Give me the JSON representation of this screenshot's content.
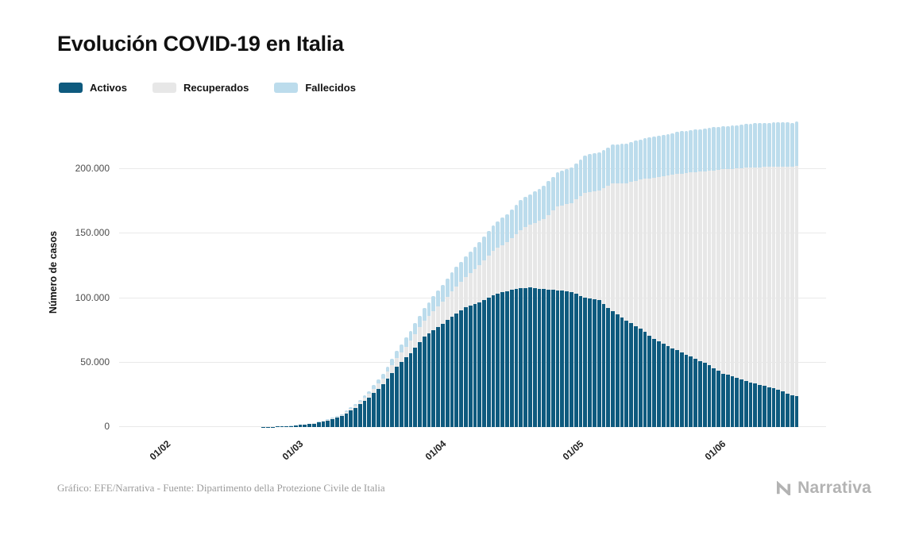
{
  "page": {
    "title": "Evolución COVID-19 en Italia",
    "footer_credit": "Gráfico: EFE/Narrativa - Fuente: Dipartimento della Protezione Civile de Italia",
    "brand": "Narrativa"
  },
  "legend": {
    "items": [
      {
        "label": "Activos",
        "key": "activos"
      },
      {
        "label": "Recuperados",
        "key": "recuperados"
      },
      {
        "label": "Fallecidos",
        "key": "fallecidos"
      }
    ]
  },
  "chart_data": {
    "type": "bar",
    "stacked": true,
    "title": "Evolución COVID-19 en Italia",
    "xlabel": "",
    "ylabel": "Número de casos",
    "ylim": [
      0,
      240000
    ],
    "grid": true,
    "legend_position": "top-left",
    "series": [
      "Activos",
      "Recuperados",
      "Fallecidos"
    ],
    "colors": {
      "activos": "#0e5a7e",
      "recuperados": "#e7e7e7",
      "fallecidos": "#bcdcec"
    },
    "yticks": [
      {
        "value": 0,
        "label": "0"
      },
      {
        "value": 50000,
        "label": "50.000"
      },
      {
        "value": 100000,
        "label": "100.000"
      },
      {
        "value": 150000,
        "label": "150.000"
      },
      {
        "value": 200000,
        "label": "200.000"
      }
    ],
    "xticks": [
      {
        "day": 10,
        "label": "01/02"
      },
      {
        "day": 39,
        "label": "01/03"
      },
      {
        "day": 70,
        "label": "01/04"
      },
      {
        "day": 100,
        "label": "01/05"
      },
      {
        "day": 131,
        "label": "01/06"
      }
    ],
    "axis_days": 154,
    "bar_days": 148,
    "anchors": [
      {
        "day": 0,
        "date": "22/01",
        "activos": 0,
        "recuperados": 0,
        "fallecidos": 0
      },
      {
        "day": 9,
        "date": "31/01",
        "activos": 2,
        "recuperados": 0,
        "fallecidos": 0
      },
      {
        "day": 24,
        "date": "15/02",
        "activos": 3,
        "recuperados": 0,
        "fallecidos": 0
      },
      {
        "day": 30,
        "date": "21/02",
        "activos": 17,
        "recuperados": 1,
        "fallecidos": 1
      },
      {
        "day": 33,
        "date": "24/02",
        "activos": 221,
        "recuperados": 1,
        "fallecidos": 7
      },
      {
        "day": 36,
        "date": "27/02",
        "activos": 528,
        "recuperados": 45,
        "fallecidos": 17
      },
      {
        "day": 39,
        "date": "01/03",
        "activos": 1577,
        "recuperados": 83,
        "fallecidos": 34
      },
      {
        "day": 42,
        "date": "04/03",
        "activos": 2706,
        "recuperados": 276,
        "fallecidos": 107
      },
      {
        "day": 45,
        "date": "07/03",
        "activos": 5061,
        "recuperados": 589,
        "fallecidos": 233
      },
      {
        "day": 48,
        "date": "10/03",
        "activos": 8514,
        "recuperados": 1004,
        "fallecidos": 631
      },
      {
        "day": 51,
        "date": "13/03",
        "activos": 14955,
        "recuperados": 1439,
        "fallecidos": 1266
      },
      {
        "day": 54,
        "date": "16/03",
        "activos": 23073,
        "recuperados": 2749,
        "fallecidos": 2158
      },
      {
        "day": 57,
        "date": "19/03",
        "activos": 33190,
        "recuperados": 4440,
        "fallecidos": 3405
      },
      {
        "day": 60,
        "date": "22/03",
        "activos": 46638,
        "recuperados": 7024,
        "fallecidos": 5476
      },
      {
        "day": 63,
        "date": "25/03",
        "activos": 57521,
        "recuperados": 9362,
        "fallecidos": 7503
      },
      {
        "day": 66,
        "date": "28/03",
        "activos": 70065,
        "recuperados": 12384,
        "fallecidos": 10023
      },
      {
        "day": 69,
        "date": "31/03",
        "activos": 77635,
        "recuperados": 15729,
        "fallecidos": 12428
      },
      {
        "day": 72,
        "date": "03/04",
        "activos": 85388,
        "recuperados": 19758,
        "fallecidos": 14681
      },
      {
        "day": 75,
        "date": "06/04",
        "activos": 93187,
        "recuperados": 22837,
        "fallecidos": 16523
      },
      {
        "day": 78,
        "date": "09/04",
        "activos": 96877,
        "recuperados": 28470,
        "fallecidos": 18279
      },
      {
        "day": 81,
        "date": "12/04",
        "activos": 102253,
        "recuperados": 34211,
        "fallecidos": 19899
      },
      {
        "day": 84,
        "date": "15/04",
        "activos": 105418,
        "recuperados": 38092,
        "fallecidos": 21645
      },
      {
        "day": 87,
        "date": "18/04",
        "activos": 107771,
        "recuperados": 44927,
        "fallecidos": 23227
      },
      {
        "day": 89,
        "date": "20/04",
        "activos": 108237,
        "recuperados": 48705,
        "fallecidos": 23660
      },
      {
        "day": 92,
        "date": "23/04",
        "activos": 106848,
        "recuperados": 54543,
        "fallecidos": 25549
      },
      {
        "day": 95,
        "date": "26/04",
        "activos": 106103,
        "recuperados": 64928,
        "fallecidos": 26644
      },
      {
        "day": 98,
        "date": "29/04",
        "activos": 104657,
        "recuperados": 68941,
        "fallecidos": 27682
      },
      {
        "day": 101,
        "date": "02/05",
        "activos": 100179,
        "recuperados": 81654,
        "fallecidos": 28884
      },
      {
        "day": 104,
        "date": "05/05",
        "activos": 98467,
        "recuperados": 85231,
        "fallecidos": 29315
      },
      {
        "day": 107,
        "date": "08/05",
        "activos": 89624,
        "recuperados": 99023,
        "fallecidos": 30201
      },
      {
        "day": 110,
        "date": "11/05",
        "activos": 82488,
        "recuperados": 106587,
        "fallecidos": 30739
      },
      {
        "day": 113,
        "date": "14/05",
        "activos": 76440,
        "recuperados": 115288,
        "fallecidos": 31368
      },
      {
        "day": 116,
        "date": "17/05",
        "activos": 68351,
        "recuperados": 125176,
        "fallecidos": 31908
      },
      {
        "day": 119,
        "date": "20/05",
        "activos": 62752,
        "recuperados": 132282,
        "fallecidos": 32330
      },
      {
        "day": 122,
        "date": "23/05",
        "activos": 57752,
        "recuperados": 138840,
        "fallecidos": 32735
      },
      {
        "day": 125,
        "date": "26/05",
        "activos": 52942,
        "recuperados": 144658,
        "fallecidos": 33048
      },
      {
        "day": 128,
        "date": "29/05",
        "activos": 47986,
        "recuperados": 150604,
        "fallecidos": 33340
      },
      {
        "day": 131,
        "date": "01/06",
        "activos": 41367,
        "recuperados": 158355,
        "fallecidos": 33530
      },
      {
        "day": 134,
        "date": "04/06",
        "activos": 38429,
        "recuperados": 161895,
        "fallecidos": 33689
      },
      {
        "day": 137,
        "date": "07/06",
        "activos": 34730,
        "recuperados": 166584,
        "fallecidos": 33964
      },
      {
        "day": 140,
        "date": "10/06",
        "activos": 31710,
        "recuperados": 169939,
        "fallecidos": 34114
      },
      {
        "day": 143,
        "date": "13/06",
        "activos": 28997,
        "recuperados": 172879,
        "fallecidos": 34301
      },
      {
        "day": 146,
        "date": "16/06",
        "activos": 24569,
        "recuperados": 177010,
        "fallecidos": 34405
      },
      {
        "day": 147,
        "date": "17/06",
        "activos": 23925,
        "recuperados": 178526,
        "fallecidos": 34448
      }
    ]
  }
}
